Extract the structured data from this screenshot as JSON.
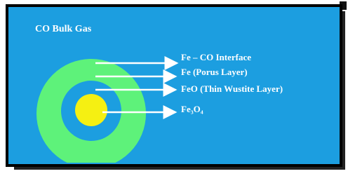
{
  "title": "CO Bulk Gas",
  "layers": [
    {
      "label": "Fe – CO Interface"
    },
    {
      "label": "Fe (Porus Layer)"
    },
    {
      "label": "FeO (Thin Wustite Layer)"
    },
    {
      "label": "Fe₃O₄"
    }
  ]
}
